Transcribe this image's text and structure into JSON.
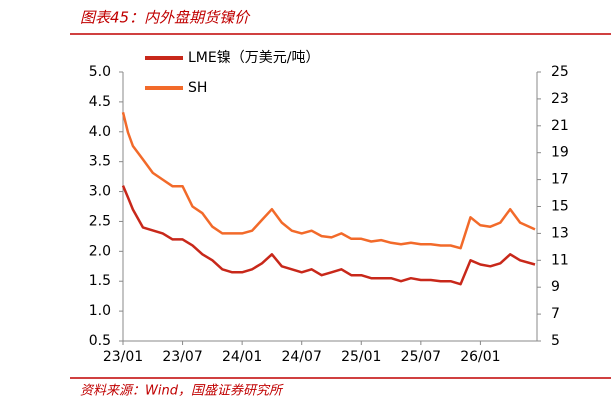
{
  "chart_data": {
    "type": "line",
    "title": "图表45：内外盘期货镍价",
    "source": "资料来源：Wind，国盛证券研究所",
    "x": [
      0,
      0.5,
      1,
      2,
      3,
      4,
      5,
      6,
      7,
      8,
      9,
      10,
      11,
      12,
      13,
      14,
      15,
      16,
      17,
      18,
      19,
      20,
      21,
      22,
      23,
      24,
      25,
      26,
      27,
      28,
      29,
      30,
      31,
      32,
      33,
      34,
      35,
      36,
      37,
      38,
      39,
      40,
      41.5
    ],
    "series": [
      {
        "name": "LME镍（万美元/吨）",
        "color": "#c8281a",
        "axis": "y",
        "values": [
          3.1,
          2.9,
          2.7,
          2.4,
          2.35,
          2.3,
          2.2,
          2.2,
          2.1,
          1.95,
          1.85,
          1.7,
          1.65,
          1.65,
          1.7,
          1.8,
          1.95,
          1.75,
          1.7,
          1.65,
          1.7,
          1.6,
          1.65,
          1.7,
          1.6,
          1.6,
          1.55,
          1.55,
          1.55,
          1.5,
          1.55,
          1.52,
          1.52,
          1.5,
          1.5,
          1.45,
          1.85,
          1.78,
          1.75,
          1.8,
          1.95,
          1.85,
          1.78
        ]
      },
      {
        "name": "SH",
        "color": "#f26a2a",
        "axis": "y2",
        "values": [
          22,
          20.5,
          19.5,
          18.5,
          17.5,
          17,
          16.5,
          16.5,
          15,
          14.5,
          13.5,
          13,
          13,
          13,
          13.2,
          14,
          14.8,
          13.8,
          13.2,
          13,
          13.2,
          12.8,
          12.7,
          13,
          12.6,
          12.6,
          12.4,
          12.5,
          12.3,
          12.2,
          12.3,
          12.2,
          12.2,
          12.1,
          12.1,
          11.9,
          14.2,
          13.6,
          13.5,
          13.8,
          14.8,
          13.8,
          13.3
        ]
      }
    ],
    "xlim": [
      0,
      41.7
    ],
    "xticks": [
      {
        "value": 0,
        "label": "23/01"
      },
      {
        "value": 6,
        "label": "23/07"
      },
      {
        "value": 12,
        "label": "24/01"
      },
      {
        "value": 18,
        "label": "24/07"
      },
      {
        "value": 24,
        "label": "25/01"
      },
      {
        "value": 30,
        "label": "25/07"
      },
      {
        "value": 36,
        "label": "26/01"
      }
    ],
    "ylim": [
      0.5,
      5
    ],
    "yticks": [
      {
        "value": 0.5,
        "label": "0.5"
      },
      {
        "value": 1,
        "label": "1.0"
      },
      {
        "value": 1.5,
        "label": "1.5"
      },
      {
        "value": 2,
        "label": "2.0"
      },
      {
        "value": 2.5,
        "label": "2.5"
      },
      {
        "value": 3,
        "label": "3.0"
      },
      {
        "value": 3.5,
        "label": "3.5"
      },
      {
        "value": 4,
        "label": "4.0"
      },
      {
        "value": 4.5,
        "label": "4.5"
      },
      {
        "value": 5,
        "label": "5.0"
      }
    ],
    "y2lim": [
      5,
      25
    ],
    "y2ticks": [
      5,
      7,
      9,
      11,
      13,
      15,
      17,
      19,
      21,
      23,
      25
    ]
  }
}
